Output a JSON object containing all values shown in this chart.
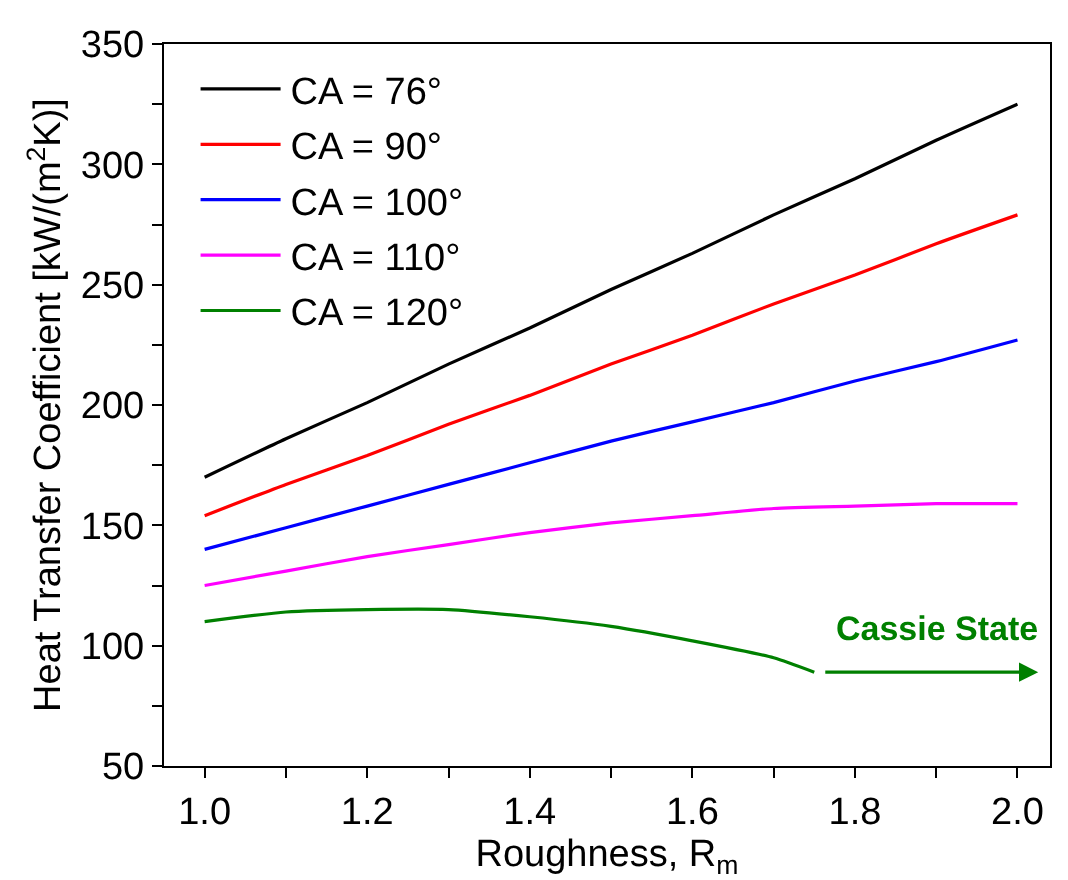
{
  "chart_data": {
    "type": "line",
    "xlabel": "Roughness, R$_{m}$",
    "ylabel": "Heat Transfer Coefficient [kW/(m$^{2}$K)]",
    "x": [
      1.0,
      1.1,
      1.2,
      1.3,
      1.4,
      1.5,
      1.6,
      1.7,
      1.8,
      1.9,
      2.0
    ],
    "series": [
      {
        "name": "CA = 76°",
        "color": "#000000",
        "values": [
          170,
          186,
          201,
          217,
          232,
          248,
          263,
          279,
          294,
          310,
          325
        ]
      },
      {
        "name": "CA = 90°",
        "color": "#ff0000",
        "values": [
          154,
          167,
          179,
          192,
          204,
          217,
          229,
          242,
          254,
          267,
          279
        ]
      },
      {
        "name": "CA = 100°",
        "color": "#0000ff",
        "values": [
          140,
          149,
          158,
          167,
          176,
          185,
          193,
          201,
          210,
          218,
          227
        ]
      },
      {
        "name": "CA = 110°",
        "color": "#ff00ff",
        "values": [
          125,
          131,
          137,
          142,
          147,
          151,
          154,
          157,
          158,
          159,
          159
        ]
      },
      {
        "name": "CA = 120°",
        "color": "#008000",
        "x": [
          1.0,
          1.1,
          1.2,
          1.3,
          1.4,
          1.5,
          1.6,
          1.7,
          1.75
        ],
        "values": [
          110,
          114,
          115,
          115,
          112,
          108,
          102,
          95,
          89
        ]
      }
    ],
    "annotations": [
      "Cassie State"
    ],
    "xlim": [
      0.95,
      2.04
    ],
    "ylim": [
      50,
      350
    ],
    "xticks": [
      {
        "value": 1.0,
        "label": "1.0"
      },
      {
        "value": 1.1,
        "label": null
      },
      {
        "value": 1.2,
        "label": "1.2"
      },
      {
        "value": 1.3,
        "label": null
      },
      {
        "value": 1.4,
        "label": "1.4"
      },
      {
        "value": 1.5,
        "label": null
      },
      {
        "value": 1.6,
        "label": "1.6"
      },
      {
        "value": 1.7,
        "label": null
      },
      {
        "value": 1.8,
        "label": "1.8"
      },
      {
        "value": 1.9,
        "label": null
      },
      {
        "value": 2.0,
        "label": "2.0"
      }
    ],
    "yticks": [
      50,
      {
        "value": 75,
        "label": null
      },
      100,
      {
        "value": 125,
        "label": null
      },
      150,
      {
        "value": 175,
        "label": null
      },
      200,
      {
        "value": 225,
        "label": null
      },
      250,
      {
        "value": 275,
        "label": null
      },
      300,
      {
        "value": 325,
        "label": null
      },
      350
    ],
    "legend": "top left",
    "marker": "none",
    "line_style": "solid"
  }
}
